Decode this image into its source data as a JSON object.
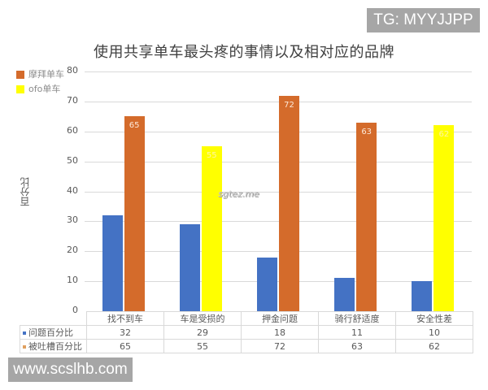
{
  "watermarks": {
    "top_right": "TG: MYYJJPP",
    "bottom_left": "www.scslhb.com",
    "center": "sgtez.me"
  },
  "chart_data": {
    "type": "bar",
    "title": "使用共享单车最头疼的事情以及相对应的品牌",
    "xlabel": "",
    "ylabel": "百分比",
    "ylim": [
      0,
      80
    ],
    "yticks": [
      0,
      10,
      20,
      30,
      40,
      50,
      60,
      70,
      80
    ],
    "grid": true,
    "legend_position": "top-left",
    "categories": [
      "找不到车",
      "车是受损的",
      "押金问题",
      "骑行舒适度",
      "安全性差"
    ],
    "series": [
      {
        "name": "问题百分比",
        "color": "#4472c4",
        "values": [
          32,
          29,
          18,
          11,
          10
        ]
      },
      {
        "name": "被吐槽百分比",
        "values": [
          65,
          55,
          72,
          63,
          62
        ],
        "colors": [
          "#d46b2b",
          "#ffff00",
          "#d46b2b",
          "#d46b2b",
          "#ffff00"
        ],
        "brand": [
          "摩拜单车",
          "ofo单车",
          "摩拜单车",
          "摩拜单车",
          "ofo单车"
        ],
        "data_labels": [
          "65",
          "55",
          "72",
          "63",
          "62"
        ]
      }
    ],
    "legend": [
      {
        "label": "摩拜单车",
        "color": "#d46b2b"
      },
      {
        "label": "ofo单车",
        "color": "#ffff00"
      }
    ],
    "table": {
      "columns": [
        "找不到车",
        "车是受损的",
        "押金问题",
        "骑行舒适度",
        "安全性差"
      ],
      "rows": [
        {
          "label": "问题百分比",
          "mark_color": "#4472c4",
          "values": [
            "32",
            "29",
            "18",
            "11",
            "10"
          ]
        },
        {
          "label": "被吐槽百分比",
          "mark_color": "#e0a060",
          "values": [
            "65",
            "55",
            "72",
            "63",
            "62"
          ]
        }
      ]
    }
  }
}
